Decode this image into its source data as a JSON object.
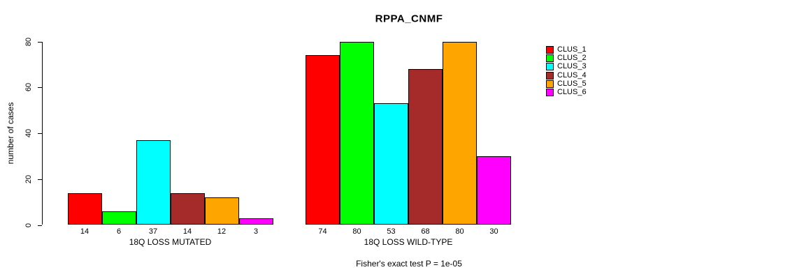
{
  "title": "RPPA_CNMF",
  "chart_data": {
    "type": "bar",
    "title": "RPPA_CNMF",
    "xlabel": "",
    "ylabel": "number of cases",
    "ylim": [
      0,
      80
    ],
    "yticks": [
      0,
      20,
      40,
      60,
      80
    ],
    "grid": false,
    "legend_position": "right-outside",
    "bar_value_labels_shown": true,
    "categories": [
      "18Q LOSS MUTATED",
      "18Q LOSS WILD-TYPE"
    ],
    "groups": [
      {
        "label": "18Q LOSS MUTATED",
        "values": [
          14,
          6,
          37,
          14,
          12,
          3
        ]
      },
      {
        "label": "18Q LOSS WILD-TYPE",
        "values": [
          74,
          80,
          53,
          68,
          80,
          30
        ]
      }
    ],
    "series_names": [
      "CLUS_1",
      "CLUS_2",
      "CLUS_3",
      "CLUS_4",
      "CLUS_5",
      "CLUS_6"
    ],
    "colors": [
      "#FF0000",
      "#00FF00",
      "#00FFFF",
      "#A52A2A",
      "#FFA500",
      "#FF00FF"
    ],
    "annotation": "Fisher's exact test P = 1e-05"
  },
  "footnote": "Fisher's exact test P = 1e-05"
}
